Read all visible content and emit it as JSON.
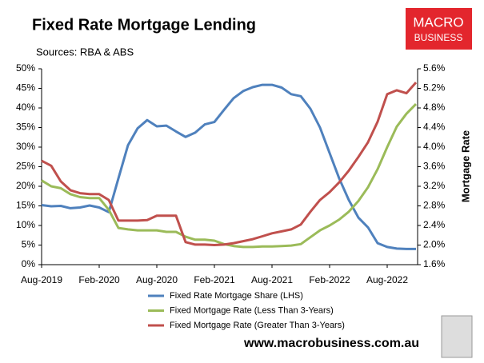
{
  "chart_data": {
    "type": "line",
    "title": "Fixed Rate Mortgage Lending",
    "subtitle": "Sources: RBA & ABS",
    "y2label": "Mortgage Rate",
    "logo": [
      "MACRO",
      "BUSINESS"
    ],
    "footer": "www.macrobusiness.com.au",
    "categories": [
      "Aug-2019",
      null,
      null,
      null,
      null,
      null,
      "Feb-2020",
      null,
      null,
      null,
      null,
      null,
      "Aug-2020",
      null,
      null,
      null,
      null,
      null,
      "Feb-2021",
      null,
      null,
      null,
      null,
      null,
      "Aug-2021",
      null,
      null,
      null,
      null,
      null,
      "Feb-2022",
      null,
      null,
      null,
      null,
      null,
      "Aug-2022",
      null,
      null,
      null
    ],
    "series": [
      {
        "name": "Fixed Rate Mortgage Share (LHS)",
        "color": "#4f81bd",
        "axis": "y",
        "values": [
          15.2,
          14.9,
          15.0,
          14.4,
          14.6,
          15.1,
          14.6,
          13.4,
          22,
          30.5,
          34.8,
          36.9,
          35.3,
          35.5,
          34,
          32.6,
          33.7,
          35.8,
          36.4,
          39.5,
          42.5,
          44.3,
          45.3,
          45.9,
          45.9,
          45.2,
          43.5,
          43,
          39.8,
          35,
          28.5,
          22,
          16.5,
          12,
          9.5,
          5.5,
          4.5,
          4.1,
          4.0,
          4.0
        ]
      },
      {
        "name": "Fixed Mortgage Rate (Less Than 3-Years)",
        "color": "#9bbb59",
        "axis": "y2",
        "values": [
          3.32,
          3.2,
          3.16,
          3.04,
          2.98,
          2.96,
          2.96,
          2.72,
          2.35,
          2.32,
          2.3,
          2.3,
          2.3,
          2.27,
          2.27,
          2.17,
          2.11,
          2.11,
          2.09,
          2.02,
          1.98,
          1.96,
          1.96,
          1.97,
          1.97,
          1.98,
          1.99,
          2.02,
          2.16,
          2.3,
          2.4,
          2.52,
          2.68,
          2.9,
          3.18,
          3.55,
          4.0,
          4.42,
          4.68,
          4.88
        ]
      },
      {
        "name": "Fixed Mortgage Rate (Greater Than 3-Years)",
        "color": "#c0504d",
        "axis": "y2",
        "values": [
          3.72,
          3.62,
          3.3,
          3.12,
          3.06,
          3.04,
          3.04,
          2.92,
          2.5,
          2.5,
          2.5,
          2.51,
          2.6,
          2.6,
          2.6,
          2.06,
          2.01,
          2.01,
          2.0,
          2.01,
          2.04,
          2.08,
          2.12,
          2.18,
          2.24,
          2.28,
          2.32,
          2.42,
          2.68,
          2.92,
          3.08,
          3.28,
          3.52,
          3.8,
          4.1,
          4.52,
          5.08,
          5.16,
          5.1,
          5.32
        ]
      }
    ],
    "ylim": [
      0,
      50
    ],
    "yticks": [
      {
        "value": 0,
        "label": "0%"
      },
      {
        "value": 5,
        "label": "5%"
      },
      {
        "value": 10,
        "label": "10%"
      },
      {
        "value": 15,
        "label": "15%"
      },
      {
        "value": 20,
        "label": "20%"
      },
      {
        "value": 25,
        "label": "25%"
      },
      {
        "value": 30,
        "label": "30%"
      },
      {
        "value": 35,
        "label": "35%"
      },
      {
        "value": 40,
        "label": "40%"
      },
      {
        "value": 45,
        "label": "45%"
      },
      {
        "value": 50,
        "label": "50%"
      }
    ],
    "y2lim": [
      1.6,
      5.6
    ],
    "y2ticks": [
      {
        "value": 1.6,
        "label": "1.6%"
      },
      {
        "value": 2.0,
        "label": "2.0%"
      },
      {
        "value": 2.4,
        "label": "2.4%"
      },
      {
        "value": 2.8,
        "label": "2.8%"
      },
      {
        "value": 3.2,
        "label": "3.2%"
      },
      {
        "value": 3.6,
        "label": "3.6%"
      },
      {
        "value": 4.0,
        "label": "4.0%"
      },
      {
        "value": 4.4,
        "label": "4.4%"
      },
      {
        "value": 4.8,
        "label": "4.8%"
      },
      {
        "value": 5.2,
        "label": "5.2%"
      },
      {
        "value": 5.6,
        "label": "5.6%"
      }
    ],
    "grid": false,
    "legend": "bottom"
  }
}
